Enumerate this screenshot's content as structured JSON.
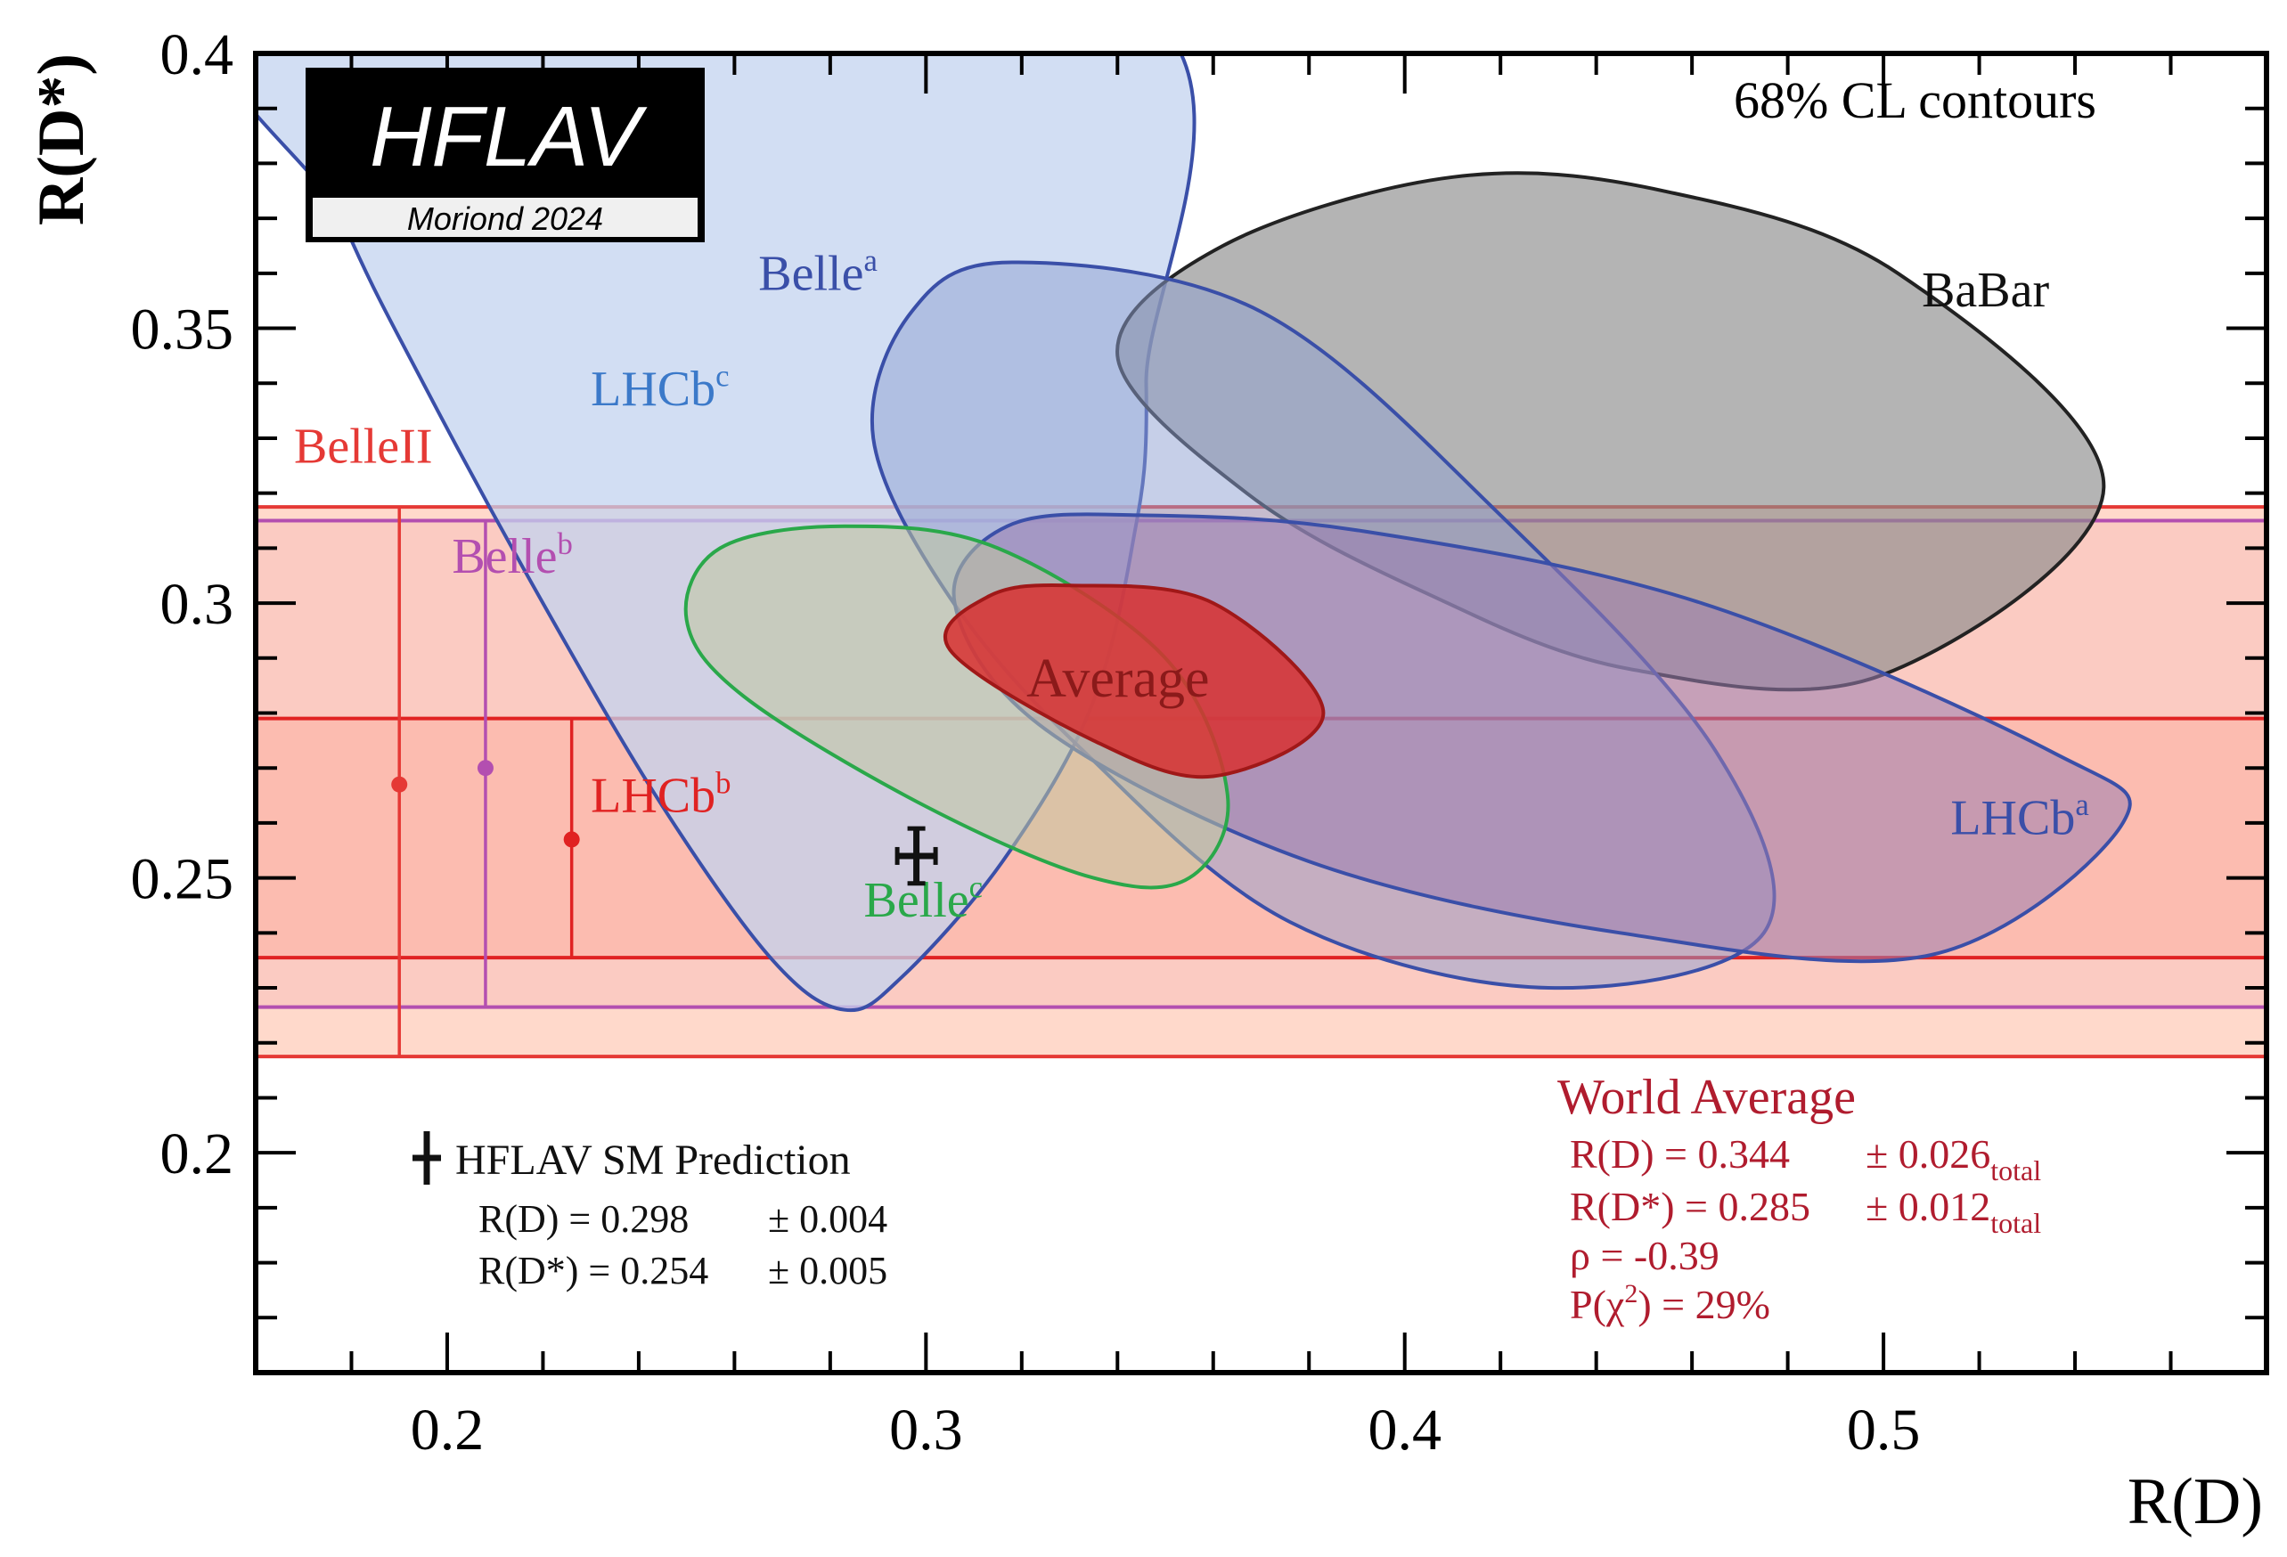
{
  "chart_data": {
    "type": "contour",
    "title": "68% CL contours",
    "xlabel": "R(D)",
    "ylabel": "R(D*)",
    "xlim": [
      0.16,
      0.58
    ],
    "ylim": [
      0.16,
      0.4
    ],
    "x_ticks": [
      0.2,
      0.3,
      0.4,
      0.5
    ],
    "x_tick_labels": [
      "0.2",
      "0.3",
      "0.4",
      "0.5"
    ],
    "y_ticks": [
      0.2,
      0.25,
      0.3,
      0.35,
      0.4
    ],
    "y_tick_labels": [
      "0.2",
      "0.25",
      "0.3",
      "0.35",
      "0.4"
    ],
    "logo": {
      "name": "HFLAV",
      "subtitle": "Moriond 2024"
    },
    "ellipses": [
      {
        "name": "Belle",
        "sup": "a",
        "color": "#3a4fa8",
        "fill": "#c3d3ef",
        "center": [
          0.255,
          0.33
        ],
        "fill_opacity": 0.75,
        "pts": [
          [
            0.161,
            0.41
          ],
          [
            0.341,
            0.41
          ],
          [
            0.346,
            0.34
          ],
          [
            0.343,
            0.31
          ],
          [
            0.334,
            0.28
          ],
          [
            0.316,
            0.253
          ],
          [
            0.295,
            0.232
          ],
          [
            0.283,
            0.226
          ],
          [
            0.268,
            0.235
          ],
          [
            0.245,
            0.263
          ],
          [
            0.22,
            0.3
          ],
          [
            0.195,
            0.34
          ],
          [
            0.178,
            0.37
          ]
        ]
      },
      {
        "name": "BaBar",
        "sup": "",
        "color": "#222222",
        "fill": "#8c8c8c",
        "center": [
          0.44,
          0.321
        ],
        "fill_opacity": 0.65,
        "pts": [
          [
            0.41,
            0.3775
          ],
          [
            0.454,
            0.375
          ],
          [
            0.503,
            0.36
          ],
          [
            0.546,
            0.321
          ],
          [
            0.5,
            0.287
          ],
          [
            0.447,
            0.288
          ],
          [
            0.404,
            0.302
          ],
          [
            0.367,
            0.32
          ],
          [
            0.34,
            0.345
          ],
          [
            0.362,
            0.365
          ]
        ]
      },
      {
        "name": "LHCb",
        "sup": "c",
        "color": "#3a4fa8",
        "fill": "#8ea0d2",
        "center": [
          0.37,
          0.286
        ],
        "fill_opacity": 0.5,
        "pts": [
          [
            0.318,
            0.362
          ],
          [
            0.37,
            0.353
          ],
          [
            0.42,
            0.316
          ],
          [
            0.465,
            0.273
          ],
          [
            0.475,
            0.24
          ],
          [
            0.43,
            0.23
          ],
          [
            0.376,
            0.242
          ],
          [
            0.333,
            0.273
          ],
          [
            0.305,
            0.301
          ],
          [
            0.289,
            0.33
          ],
          [
            0.297,
            0.353
          ]
        ]
      },
      {
        "name": "LHCb",
        "sup": "a",
        "color": "#3a4fa8",
        "fill": "#9a7db0",
        "center": [
          0.43,
          0.273
        ],
        "fill_opacity": 0.55,
        "pts": [
          [
            0.345,
            0.316
          ],
          [
            0.392,
            0.313
          ],
          [
            0.462,
            0.3
          ],
          [
            0.535,
            0.273
          ],
          [
            0.55,
            0.26
          ],
          [
            0.51,
            0.236
          ],
          [
            0.445,
            0.24
          ],
          [
            0.38,
            0.253
          ],
          [
            0.325,
            0.277
          ],
          [
            0.306,
            0.3
          ],
          [
            0.317,
            0.314
          ]
        ]
      },
      {
        "name": "Belle",
        "sup": "c",
        "color": "#2aa84a",
        "fill": "#bfc69f",
        "center": [
          0.298,
          0.278
        ],
        "fill_opacity": 0.55,
        "pts": [
          [
            0.283,
            0.314
          ],
          [
            0.315,
            0.31
          ],
          [
            0.35,
            0.29
          ],
          [
            0.363,
            0.265
          ],
          [
            0.355,
            0.25
          ],
          [
            0.335,
            0.25
          ],
          [
            0.3,
            0.263
          ],
          [
            0.262,
            0.283
          ],
          [
            0.25,
            0.297
          ],
          [
            0.257,
            0.31
          ]
        ]
      },
      {
        "name": "Average",
        "sup": "",
        "color": "#a01818",
        "fill": "#d83030",
        "center": [
          0.344,
          0.285
        ],
        "fill_opacity": 0.85,
        "pts": [
          [
            0.33,
            0.3032
          ],
          [
            0.36,
            0.3
          ],
          [
            0.383,
            0.28
          ],
          [
            0.36,
            0.2685
          ],
          [
            0.335,
            0.275
          ],
          [
            0.305,
            0.2915
          ],
          [
            0.313,
            0.3012
          ]
        ]
      }
    ],
    "bands": [
      {
        "name": "BelleII",
        "color": "#e53935",
        "y_center": 0.267,
        "y_low": 0.2175,
        "y_high": 0.3175,
        "x_marker": 0.19,
        "fill": "#ffb9a0",
        "fill_opacity": 0.55
      },
      {
        "name": "Belle",
        "sup": "b",
        "color": "#b34fb0",
        "y_center": 0.27,
        "y_low": 0.2265,
        "y_high": 0.315,
        "x_marker": 0.208,
        "fill": "#f4b3b3",
        "fill_opacity": 0.35
      },
      {
        "name": "LHCb",
        "sup": "b",
        "color": "#e02222",
        "y_center": 0.257,
        "y_low": 0.2355,
        "y_high": 0.279,
        "x_marker": 0.226,
        "fill": "#ffa08e",
        "fill_opacity": 0.35
      }
    ],
    "labels": [
      {
        "text": "Belle",
        "sup": "a",
        "color": "#3a4fa8",
        "x": 0.265,
        "y": 0.357
      },
      {
        "text": "BaBar",
        "sup": "",
        "color": "#111111",
        "x": 0.508,
        "y": 0.354
      },
      {
        "text": "LHCb",
        "sup": "c",
        "color": "#3b79c9",
        "x": 0.23,
        "y": 0.336
      },
      {
        "text": "BelleII",
        "sup": "",
        "color": "#e53935",
        "x": 0.168,
        "y": 0.3255
      },
      {
        "text": "Belle",
        "sup": "b",
        "color": "#b34fb0",
        "x": 0.201,
        "y": 0.3055
      },
      {
        "text": "Average",
        "sup": "",
        "color": "#8b1a1a",
        "x": 0.321,
        "y": 0.283
      },
      {
        "text": "LHCb",
        "sup": "b",
        "color": "#e02222",
        "x": 0.23,
        "y": 0.262
      },
      {
        "text": "Belle",
        "sup": "c",
        "color": "#2aa84a",
        "x": 0.287,
        "y": 0.243
      },
      {
        "text": "LHCb",
        "sup": "a",
        "color": "#3a4fa8",
        "x": 0.514,
        "y": 0.258
      }
    ],
    "sm_prediction": {
      "label": "HFLAV SM Prediction",
      "rd_text": "R(D) = 0.298",
      "rd_err": "± 0.004",
      "rds_text": "R(D*) = 0.254",
      "rds_err": "± 0.005",
      "x": 0.298,
      "x_err": 0.004,
      "y": 0.254,
      "y_err": 0.005
    },
    "world_average": {
      "title": "World Average",
      "rd_text": "R(D) = 0.344",
      "rd_err": "± 0.026",
      "rds_text": "R(D*) = 0.285",
      "rds_err": "± 0.012",
      "err_sub": "total",
      "rho_text": "ρ = -0.39",
      "p_text": "P(χ",
      "p_sup": "2",
      "p_rest": ") = 29%",
      "color": "#b01c2e"
    }
  }
}
